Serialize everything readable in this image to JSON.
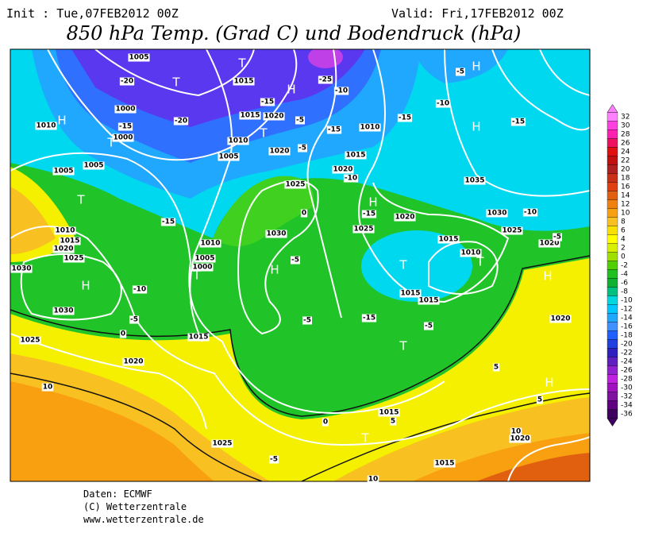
{
  "header": {
    "init": "Init : Tue,07FEB2012 00Z",
    "valid": "Valid: Fri,17FEB2012 00Z",
    "title": "850 hPa Temp. (Grad C) und Bodendruck (hPa)"
  },
  "colorbar": {
    "ticks": [
      32,
      30,
      28,
      26,
      24,
      22,
      20,
      18,
      16,
      14,
      12,
      10,
      8,
      6,
      4,
      2,
      0,
      -2,
      -4,
      -6,
      -8,
      -10,
      -12,
      -14,
      -16,
      -18,
      -20,
      -22,
      -24,
      -26,
      -28,
      -30,
      -32,
      -34,
      -36
    ],
    "colors": [
      "#ff80ff",
      "#ff40e0",
      "#ff20b0",
      "#f01060",
      "#e01010",
      "#c01010",
      "#b02020",
      "#c83018",
      "#e04010",
      "#e06010",
      "#f08010",
      "#f8a010",
      "#f8c020",
      "#f8e000",
      "#ffff00",
      "#d8f000",
      "#a0e000",
      "#50d000",
      "#20c020",
      "#10b030",
      "#00c080",
      "#00d8e0",
      "#00c8ff",
      "#20a8ff",
      "#4090ff",
      "#2060ff",
      "#2040e0",
      "#3020c0",
      "#6020c0",
      "#9020d0",
      "#c020e0",
      "#a010c0",
      "#8010a0",
      "#600080",
      "#400060"
    ]
  },
  "map": {
    "labels": [
      "1005",
      "-20",
      "T",
      "T",
      "1015",
      "H",
      "-25",
      "-10",
      "-15",
      "1015",
      "1020",
      "-5",
      "-20",
      "1000",
      "-15",
      "1010",
      "H",
      "1000",
      "T",
      "1010",
      "T",
      "1020",
      "-5",
      "-15",
      "1010",
      "-15",
      "-10",
      "H",
      "-5",
      "H",
      "-15",
      "1035",
      "1030",
      "-10",
      "1025",
      "1020",
      "-5",
      "1005",
      "1005",
      "T",
      "1005",
      "1015",
      "-10",
      "1020",
      "1025",
      "0",
      "1030",
      "-5",
      "H",
      "-15",
      "1010",
      "1015",
      "1020",
      "1025",
      "1030",
      "H",
      "-10",
      "1030",
      "-5",
      "0",
      "1025",
      "1020",
      "10",
      "1010",
      "1005",
      "1000",
      "T",
      "1015",
      "-15",
      "H",
      "1020",
      "1025",
      "T",
      "1015",
      "1010",
      "T",
      "1015",
      "1015",
      "H",
      "-15",
      "-5",
      "-5",
      "T",
      "1020",
      "H",
      "5",
      "1015",
      "5",
      "0",
      "T",
      "1025",
      "-5",
      "1015",
      "10",
      "10",
      "1020",
      "5"
    ]
  },
  "footer": {
    "lines": [
      "Daten: ECMWF",
      "(C) Wetterzentrale",
      "www.wetterzentrale.de"
    ]
  }
}
